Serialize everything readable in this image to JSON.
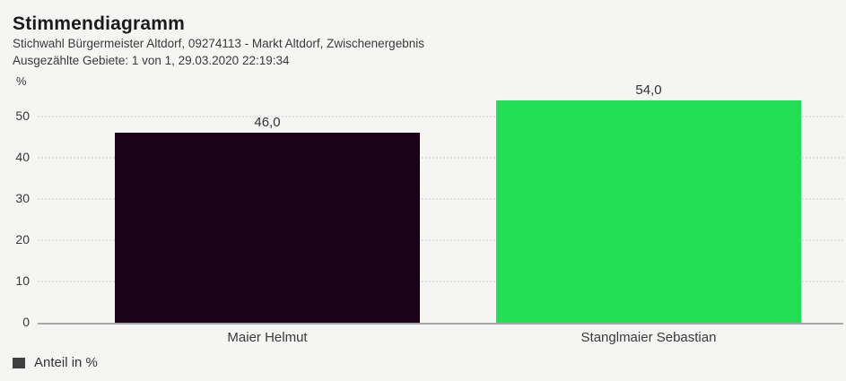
{
  "header": {
    "title": "Stimmendiagramm",
    "subtitle1": "Stichwahl Bürgermeister Altdorf, 09274113 - Markt Altdorf, Zwischenergebnis",
    "subtitle2": "Ausgezählte Gebiete: 1 von 1, 29.03.2020 22:19:34"
  },
  "chart_data": {
    "type": "bar",
    "title": "Stimmendiagramm",
    "categories": [
      "Maier Helmut",
      "Stanglmaier Sebastian"
    ],
    "values": [
      46.0,
      54.0
    ],
    "value_labels": [
      "46,0",
      "54,0"
    ],
    "bar_colors": [
      "#1a0317",
      "#22de55"
    ],
    "xlabel": "",
    "ylabel": "%",
    "ylim": [
      0,
      57
    ],
    "yticks": [
      0,
      10,
      20,
      30,
      40,
      50
    ],
    "grid": "dotted horizontal gridlines",
    "legend": {
      "label": "Anteil in %",
      "marker_color": "#3f3f3f",
      "position": "bottom-left"
    }
  },
  "colors": {
    "background": "#f5f5f4",
    "title_text": "#1b1b1b",
    "body_text": "#3a3a3a",
    "gridline": "#e0e0e0",
    "axis_line": "#a8a8a8"
  }
}
